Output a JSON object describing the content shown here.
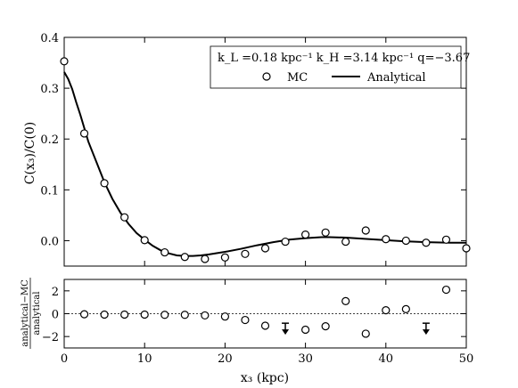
{
  "chart_data": [
    {
      "type": "scatter",
      "panel": "main",
      "ylabel": "C(x₃)/C(0)",
      "xlim": [
        0,
        50
      ],
      "ylim": [
        -0.05,
        0.4
      ],
      "yticks": [
        "0.4",
        "0.3",
        "0.2",
        "0.1",
        "0.0"
      ],
      "ytick_values": [
        0.4,
        0.3,
        0.2,
        0.1,
        0.0
      ],
      "grid": false,
      "legend_placement": "top-right",
      "legend_params": "k_L =0.18 kpc⁻¹   k_H =3.14 kpc⁻¹   q=−3.67",
      "series": [
        {
          "name": "MC",
          "marker": "open-circle",
          "x": [
            0,
            2.5,
            5,
            7.5,
            10,
            12.5,
            15,
            17.5,
            20,
            22.5,
            25,
            27.5,
            30,
            32.5,
            35,
            37.5,
            40,
            42.5,
            45,
            47.5,
            50
          ],
          "y": [
            0.353,
            0.211,
            0.113,
            0.046,
            0.001,
            -0.023,
            -0.032,
            -0.036,
            -0.033,
            -0.026,
            -0.015,
            -0.002,
            0.012,
            0.016,
            -0.002,
            0.02,
            0.003,
            0.0,
            -0.004,
            0.002,
            -0.015
          ]
        },
        {
          "name": "Analytical",
          "marker": "line",
          "x": [
            0,
            0.5,
            1,
            1.5,
            2,
            3,
            4,
            5,
            6,
            7,
            8,
            9,
            10,
            11,
            12,
            13,
            14,
            15,
            16,
            17,
            18,
            20,
            22,
            24,
            26,
            28,
            30,
            32,
            33,
            35,
            38,
            40,
            42,
            45,
            48,
            50
          ],
          "y": [
            0.332,
            0.318,
            0.298,
            0.272,
            0.248,
            0.195,
            0.155,
            0.115,
            0.082,
            0.055,
            0.033,
            0.015,
            0.002,
            -0.01,
            -0.019,
            -0.025,
            -0.029,
            -0.03,
            -0.03,
            -0.029,
            -0.027,
            -0.022,
            -0.016,
            -0.009,
            -0.003,
            0.002,
            0.005,
            0.007,
            0.007,
            0.006,
            0.003,
            0.001,
            -0.001,
            -0.003,
            -0.004,
            -0.004
          ]
        }
      ]
    },
    {
      "type": "scatter",
      "panel": "residual",
      "xlabel": "x₃ (kpc)",
      "ylabel_num": "analytical−MC",
      "ylabel_den": "analytical",
      "xlim": [
        0,
        50
      ],
      "ylim": [
        -3,
        3
      ],
      "xticks": [
        "0",
        "10",
        "20",
        "30",
        "40",
        "50"
      ],
      "xtick_values": [
        0,
        10,
        20,
        30,
        40,
        50
      ],
      "yticks": [
        "2",
        "0",
        "−2"
      ],
      "ytick_values": [
        2,
        0,
        -2
      ],
      "reference_line": 0,
      "series": [
        {
          "name": "",
          "marker": "open-circle",
          "x": [
            2.5,
            5,
            7.5,
            10,
            12.5,
            15,
            17.5,
            20,
            22.5,
            25,
            30,
            32.5,
            35,
            37.5,
            40,
            42.5,
            47.5
          ],
          "y": [
            -0.05,
            -0.08,
            -0.08,
            -0.08,
            -0.1,
            -0.1,
            -0.15,
            -0.25,
            -0.55,
            -1.05,
            -1.4,
            -1.1,
            1.1,
            -1.75,
            0.3,
            0.4,
            2.1
          ]
        },
        {
          "name": "",
          "marker": "down-arrow",
          "x": [
            27.5,
            45
          ],
          "y": [
            -1.3,
            -1.3
          ]
        }
      ]
    }
  ]
}
